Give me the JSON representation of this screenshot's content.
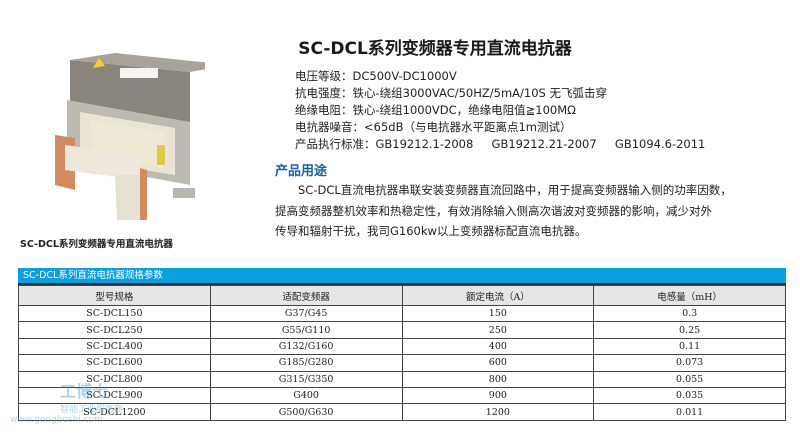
{
  "title": "SC-DCL系列变频器专用直流电抗器",
  "product_caption": "SC-DCL系列变频器专用直流电抗器",
  "specs": [
    "电压等级：DC500V-DC1000V",
    "抗电强度：铁心-绕组3000VAC/50HZ/5mA/10S 无飞弧击穿",
    "绝缘电阻：铁心-绕组1000VDC，绝缘电阻值≧100MΩ",
    "电抗器噪音：<65dB（与电抗器水平距离点1m测试）",
    "产品执行标准：GB19212.1-2008     GB19212.21-2007     GB1094.6-2011"
  ],
  "usage": {
    "heading": "产品用途",
    "lines": [
      "SC-DCL直流电抗器串联安装变频器直流回路中，用于提高变频器输入侧的功率因数，",
      "提高变频器整机效率和热稳定性，有效消除输入侧高次谐波对变频器的影响，减少对外",
      "传导和辐射干扰，我司G160kw以上变频器标配直流电抗器。"
    ]
  },
  "table": {
    "title": "SC-DCL系列直流电抗器规格参数",
    "headers": [
      "型号规格",
      "适配变频器",
      "额定电流（A）",
      "电感量（mH）"
    ],
    "rows": [
      [
        "SC-DCL150",
        "G37/G45",
        "150",
        "0.3"
      ],
      [
        "SC-DCL250",
        "G55/G110",
        "250",
        "0.25"
      ],
      [
        "SC-DCL400",
        "G132/G160",
        "400",
        "0.11"
      ],
      [
        "SC-DCL600",
        "G185/G280",
        "600",
        "0.073"
      ],
      [
        "SC-DCL800",
        "G315/G350",
        "800",
        "0.055"
      ],
      [
        "SC-DCL900",
        "G400",
        "900",
        "0.035"
      ],
      [
        "SC-DCL1200",
        "G500/G630",
        "1200",
        "0.011"
      ]
    ]
  },
  "watermark": {
    "brand": "工博士",
    "slogan": "智能工业服务商",
    "url": "www.gongboshi.com"
  },
  "colors": {
    "accent": "#0aa0e0",
    "heading": "#1f5fa6"
  }
}
